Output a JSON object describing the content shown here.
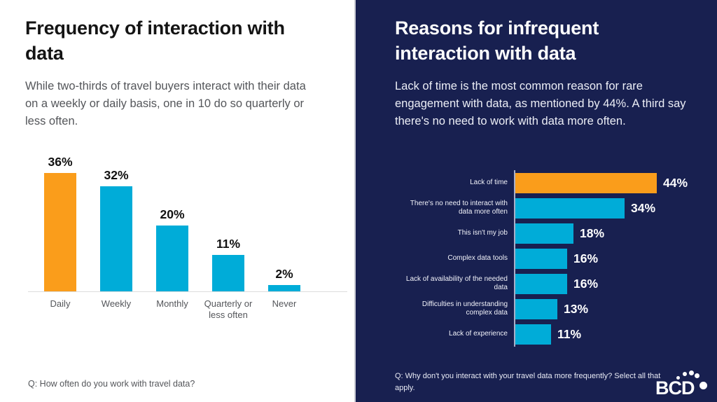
{
  "slide": {
    "left_panel": {
      "title": "Frequency of interaction with data",
      "subtitle": "While two-thirds of travel buyers interact with their data on a weekly or daily basis, one in 10 do so quarterly or less often.",
      "footnote": "Q: How often do you work with travel data?"
    },
    "right_panel": {
      "title": "Reasons for infrequent interaction with data",
      "subtitle": "Lack of time is the most common reason for rare engagement with data, as mentioned by 44%. A third say there's no need to work with data more often.",
      "footnote": "Q: Why don't you interact with your travel data more frequently? Select all that apply.",
      "logo_text": "BCD"
    }
  },
  "colors": {
    "highlight_orange": "#FA9D1B",
    "bar_cyan": "#00ACD8",
    "panel_navy": "#182050",
    "panel_white": "#FFFFFF",
    "baseline_gray": "#DCDCDC",
    "axis_light": "#A9AFC9",
    "text_gray": "#54565A"
  },
  "chart_data": [
    {
      "type": "bar",
      "orientation": "vertical",
      "title": "Frequency of interaction with data",
      "categories": [
        "Daily",
        "Weekly",
        "Monthly",
        "Quarterly or less often",
        "Never"
      ],
      "values": [
        36,
        32,
        20,
        11,
        2
      ],
      "data_labels": [
        "36%",
        "32%",
        "20%",
        "11%",
        "2%"
      ],
      "unit": "%",
      "highlight_index": 0,
      "highlight_color": "#FA9D1B",
      "bar_color": "#00ACD8",
      "ylim": [
        0,
        42
      ],
      "grid": false,
      "axis_style": "baseline only, no ticks, data labels above bars"
    },
    {
      "type": "bar",
      "orientation": "horizontal",
      "title": "Reasons for infrequent interaction with data",
      "categories": [
        "Lack of time",
        "There's no need to interact with data more often",
        "This isn't my job",
        "Complex data tools",
        "Lack of availability of the needed data",
        "Difficulties in understanding complex data",
        "Lack of experience"
      ],
      "values": [
        44,
        34,
        18,
        16,
        16,
        13,
        11
      ],
      "data_labels": [
        "44%",
        "34%",
        "18%",
        "16%",
        "16%",
        "13%",
        "11%"
      ],
      "unit": "%",
      "highlight_index": 0,
      "highlight_color": "#FA9D1B",
      "bar_color": "#00ACD8",
      "xlim": [
        0,
        52
      ],
      "grid": false,
      "axis_style": "vertical baseline only, no ticks, data labels right of bars"
    }
  ]
}
